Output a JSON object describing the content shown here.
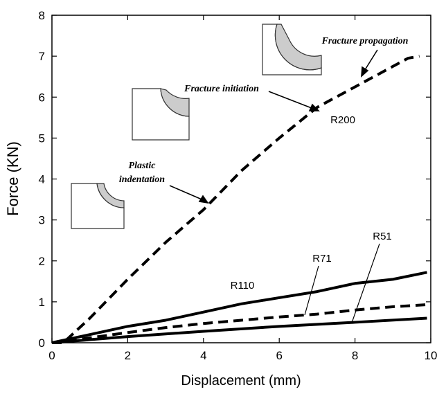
{
  "chart_data": {
    "type": "line",
    "x_label": "Displacement (mm)",
    "y_label": "Force (KN)",
    "xlim": [
      0,
      10
    ],
    "xticks": [
      0,
      2,
      4,
      6,
      8,
      10
    ],
    "ylim": [
      0,
      8
    ],
    "yticks": [
      0,
      1,
      2,
      3,
      4,
      5,
      6,
      7,
      8
    ],
    "grid": false,
    "annotations": [
      {
        "text": "Fracture propagation"
      },
      {
        "text": "Fracture initiation"
      },
      {
        "text": [
          "Plastic",
          "indentation"
        ]
      }
    ],
    "series": [
      {
        "name": "R200",
        "color": "#000000",
        "linestyle": "dashed",
        "x": [
          0,
          0.3,
          1,
          2,
          3,
          4,
          5,
          6,
          7,
          8,
          8.5,
          9,
          9.4,
          9.7
        ],
        "values": [
          0,
          0,
          0.6,
          1.55,
          2.45,
          3.25,
          4.2,
          5.0,
          5.75,
          6.25,
          6.5,
          6.75,
          6.95,
          7.0
        ]
      },
      {
        "name": "R110",
        "color": "#000000",
        "linestyle": "solid",
        "x": [
          0,
          1,
          2,
          3,
          4,
          5,
          6,
          7,
          8,
          9,
          9.9
        ],
        "values": [
          0,
          0.2,
          0.4,
          0.55,
          0.75,
          0.95,
          1.1,
          1.25,
          1.45,
          1.55,
          1.72
        ]
      },
      {
        "name": "R71",
        "color": "#000000",
        "linestyle": "dashed",
        "x": [
          0,
          1,
          2,
          3,
          4,
          5,
          6,
          7,
          8,
          9,
          9.9
        ],
        "values": [
          0,
          0.12,
          0.25,
          0.37,
          0.47,
          0.55,
          0.63,
          0.7,
          0.8,
          0.88,
          0.93
        ]
      },
      {
        "name": "R51",
        "color": "#000000",
        "linestyle": "solid",
        "x": [
          0,
          2,
          4,
          6,
          8,
          9.9
        ],
        "values": [
          0,
          0.15,
          0.28,
          0.4,
          0.5,
          0.6
        ]
      }
    ]
  }
}
